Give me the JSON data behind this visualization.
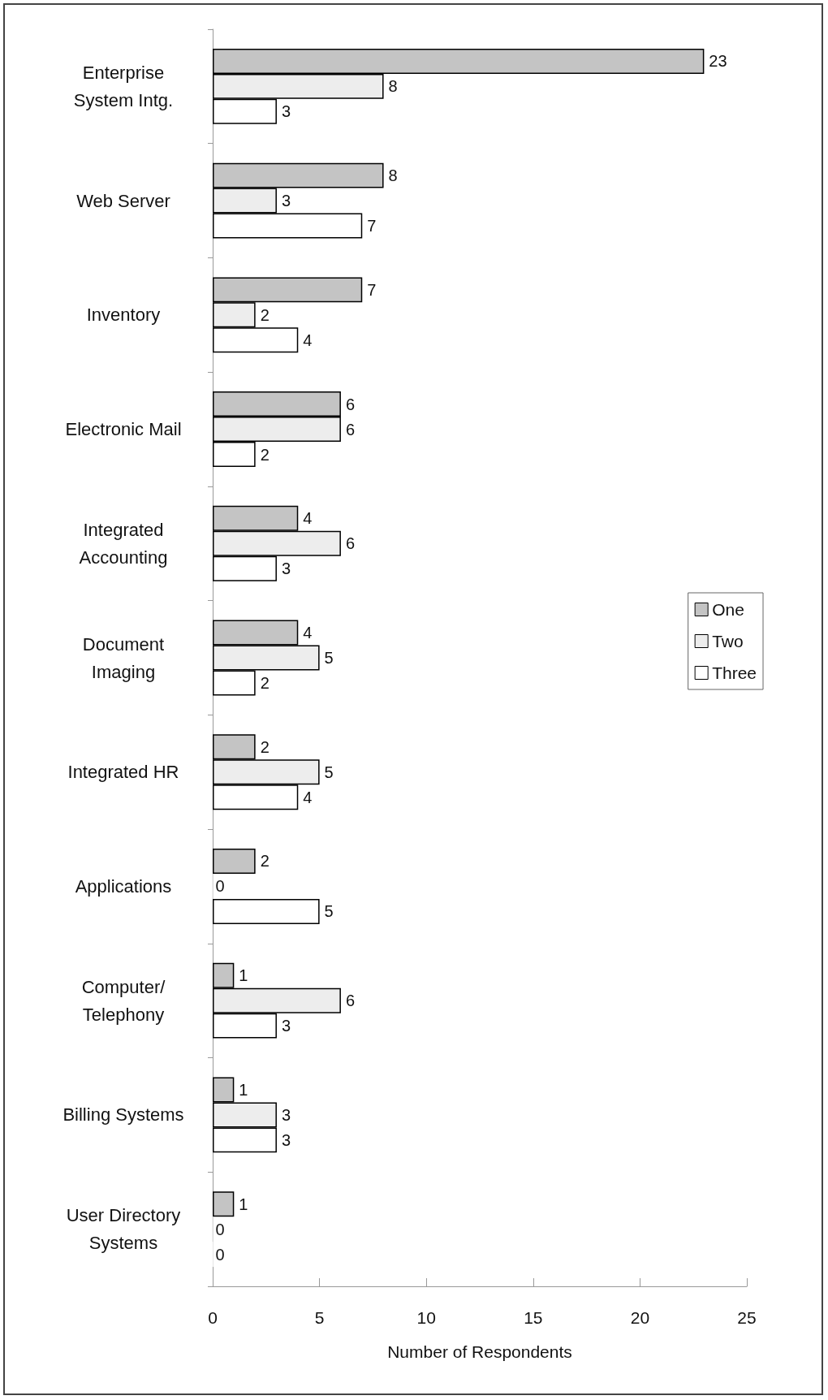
{
  "chart_data": {
    "type": "bar",
    "orientation": "horizontal",
    "xlabel": "Number of Respondents",
    "categories": [
      "Enterprise System Intg.",
      "Web Server",
      "Inventory",
      "Electronic Mail",
      "Integrated Accounting",
      "Document Imaging",
      "Integrated HR",
      "Applications",
      "Computer/ Telephony",
      "Billing Systems",
      "User Directory Systems"
    ],
    "series": [
      {
        "name": "One",
        "color": "#c4c4c4",
        "values": [
          23,
          8,
          7,
          6,
          4,
          4,
          2,
          2,
          1,
          1,
          1
        ]
      },
      {
        "name": "Two",
        "color": "#ededed",
        "values": [
          8,
          3,
          2,
          6,
          6,
          5,
          5,
          0,
          6,
          3,
          0
        ]
      },
      {
        "name": "Three",
        "color": "#ffffff",
        "values": [
          3,
          7,
          4,
          2,
          3,
          2,
          4,
          5,
          3,
          3,
          0
        ]
      }
    ],
    "xlim": [
      0,
      25
    ],
    "xticks": [
      0,
      5,
      10,
      15,
      20,
      25
    ],
    "data_labels": true,
    "legend": "right",
    "grid": false
  }
}
